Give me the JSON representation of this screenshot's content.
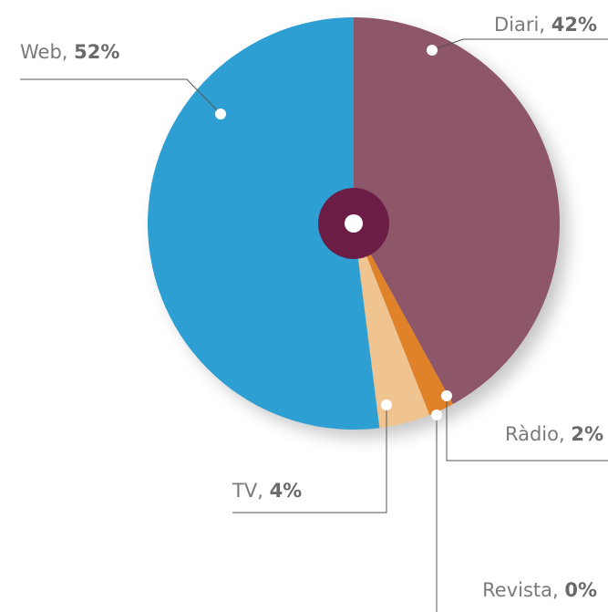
{
  "chart_data": {
    "type": "pie",
    "categories": [
      "Diari",
      "Ràdio",
      "Revista",
      "TV",
      "Web"
    ],
    "values": [
      42,
      2,
      0,
      4,
      52
    ],
    "value_labels": [
      "42%",
      "2%",
      "0%",
      "4%",
      "52%"
    ],
    "label_separator": ", ",
    "colors": [
      "#8e5669",
      "#e0822a",
      "#e9a35c",
      "#f0c490",
      "#2e9fd3"
    ]
  }
}
